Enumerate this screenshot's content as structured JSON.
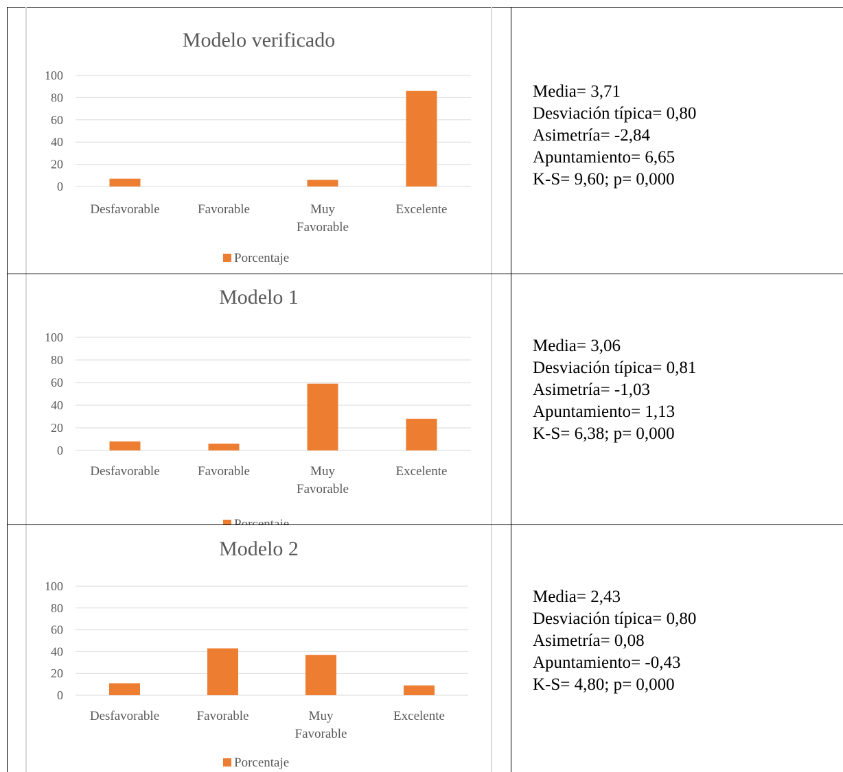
{
  "rows": [
    {
      "chart_data": {
        "type": "bar",
        "title": "Modelo verificado",
        "categories": [
          "Desfavorable",
          "Favorable",
          "Muy Favorable",
          "Excelente"
        ],
        "series": [
          {
            "name": "Porcentaje",
            "values": [
              7,
              0,
              6,
              86
            ]
          }
        ],
        "ylim": [
          0,
          100
        ],
        "yticks": [
          0,
          20,
          40,
          60,
          80,
          100
        ],
        "grid": true,
        "legend": "bottom",
        "color": "#ED7D31"
      },
      "stats": [
        "Media= 3,71",
        "Desviación típica= 0,80",
        "Asimetría= -2,84",
        "Apuntamiento= 6,65",
        "K-S= 9,60; p= 0,000"
      ]
    },
    {
      "chart_data": {
        "type": "bar",
        "title": "Modelo 1",
        "categories": [
          "Desfavorable",
          "Favorable",
          "Muy Favorable",
          "Excelente"
        ],
        "series": [
          {
            "name": "Porcentaje",
            "values": [
              8,
              6,
              59,
              28
            ]
          }
        ],
        "ylim": [
          0,
          100
        ],
        "yticks": [
          0,
          20,
          40,
          60,
          80,
          100
        ],
        "grid": true,
        "legend": "bottom",
        "color": "#ED7D31"
      },
      "stats": [
        "Media= 3,06",
        "Desviación típica= 0,81",
        "Asimetría= -1,03",
        "Apuntamiento= 1,13",
        "K-S= 6,38; p= 0,000"
      ]
    },
    {
      "chart_data": {
        "type": "bar",
        "title": "Modelo 2",
        "categories": [
          "Desfavorable",
          "Favorable",
          "Muy Favorable",
          "Excelente"
        ],
        "series": [
          {
            "name": "Porcentaje",
            "values": [
              11,
              43,
              37,
              9
            ]
          }
        ],
        "ylim": [
          0,
          100
        ],
        "yticks": [
          0,
          20,
          40,
          60,
          80,
          100
        ],
        "grid": true,
        "legend": "bottom",
        "color": "#ED7D31"
      },
      "stats": [
        "Media= 2,43",
        "Desviación típica= 0,80",
        "Asimetría= 0,08",
        "Apuntamiento= -0,43",
        "K-S= 4,80; p= 0,000"
      ]
    }
  ]
}
